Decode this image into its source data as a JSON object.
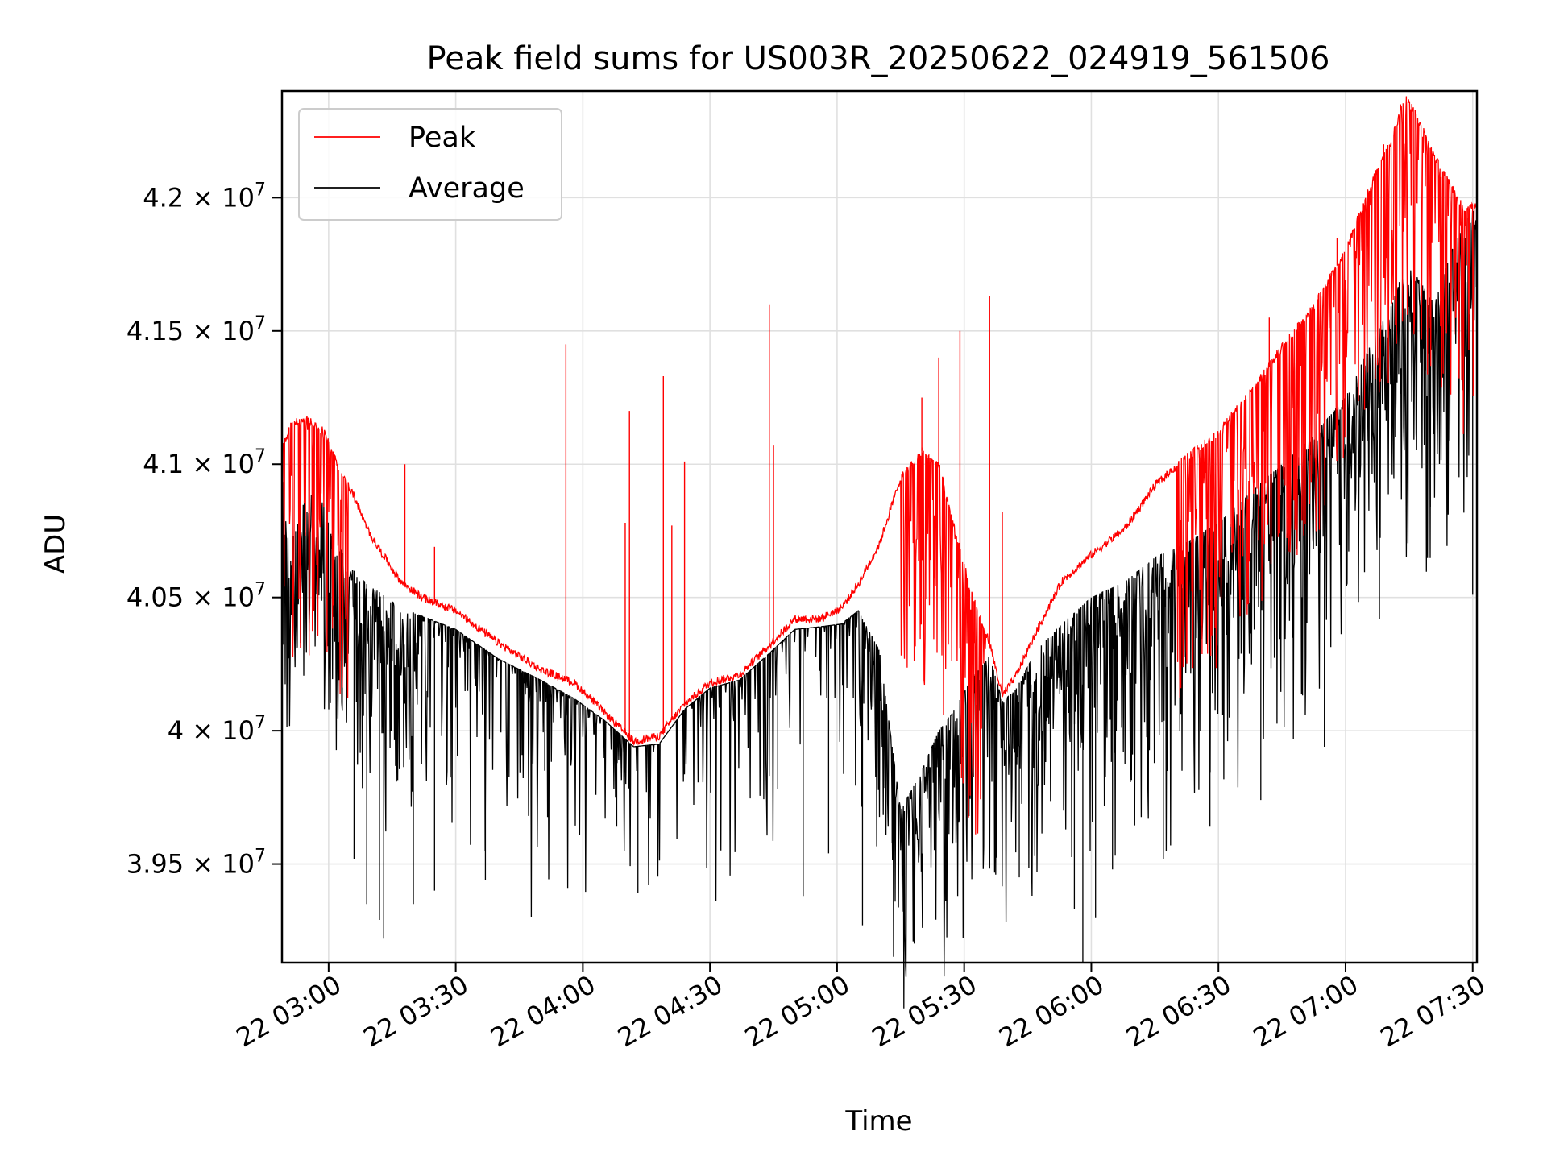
{
  "chart_data": {
    "type": "line",
    "title": "Peak field sums for US003R_20250622_024919_561506",
    "xlabel": "Time",
    "ylabel": "ADU",
    "x_axis_kind": "time",
    "xlim": [
      "2025-06-22 02:49",
      "2025-06-22 07:31"
    ],
    "ylim": [
      39130000,
      42400000
    ],
    "grid": true,
    "legend_position": "top-left",
    "x_ticks": [
      {
        "value": "2025-06-22 03:00",
        "label": "22 03:00"
      },
      {
        "value": "2025-06-22 03:30",
        "label": "22 03:30"
      },
      {
        "value": "2025-06-22 04:00",
        "label": "22 04:00"
      },
      {
        "value": "2025-06-22 04:30",
        "label": "22 04:30"
      },
      {
        "value": "2025-06-22 05:00",
        "label": "22 05:00"
      },
      {
        "value": "2025-06-22 05:30",
        "label": "22 05:30"
      },
      {
        "value": "2025-06-22 06:00",
        "label": "22 06:00"
      },
      {
        "value": "2025-06-22 06:30",
        "label": "22 06:30"
      },
      {
        "value": "2025-06-22 07:00",
        "label": "22 07:00"
      },
      {
        "value": "2025-06-22 07:30",
        "label": "22 07:30"
      }
    ],
    "y_ticks": [
      {
        "value": 39500000,
        "mantissa": "3.95",
        "exponent": "7"
      },
      {
        "value": 40000000,
        "mantissa": "4",
        "exponent": "7"
      },
      {
        "value": 40500000,
        "mantissa": "4.05",
        "exponent": "7"
      },
      {
        "value": 41000000,
        "mantissa": "4.1",
        "exponent": "7"
      },
      {
        "value": 41500000,
        "mantissa": "4.15",
        "exponent": "7"
      },
      {
        "value": 42000000,
        "mantissa": "4.2",
        "exponent": "7"
      }
    ],
    "series": [
      {
        "name": "Peak",
        "color": "#ff0000",
        "baseline": [
          [
            "2025-06-22 02:49",
            41050000
          ],
          [
            "2025-06-22 02:51",
            41150000
          ],
          [
            "2025-06-22 02:55",
            41170000
          ],
          [
            "2025-06-22 02:59",
            41120000
          ],
          [
            "2025-06-22 03:02",
            41000000
          ],
          [
            "2025-06-22 03:06",
            40880000
          ],
          [
            "2025-06-22 03:09",
            40760000
          ],
          [
            "2025-06-22 03:12",
            40680000
          ],
          [
            "2025-06-22 03:17",
            40560000
          ],
          [
            "2025-06-22 03:22",
            40500000
          ],
          [
            "2025-06-22 03:30",
            40450000
          ],
          [
            "2025-06-22 03:40",
            40330000
          ],
          [
            "2025-06-22 03:50",
            40230000
          ],
          [
            "2025-06-22 03:58",
            40180000
          ],
          [
            "2025-06-22 04:05",
            40070000
          ],
          [
            "2025-06-22 04:12",
            39960000
          ],
          [
            "2025-06-22 04:18",
            39980000
          ],
          [
            "2025-06-22 04:24",
            40100000
          ],
          [
            "2025-06-22 04:30",
            40180000
          ],
          [
            "2025-06-22 04:37",
            40210000
          ],
          [
            "2025-06-22 04:44",
            40320000
          ],
          [
            "2025-06-22 04:50",
            40420000
          ],
          [
            "2025-06-22 04:56",
            40420000
          ],
          [
            "2025-06-22 05:01",
            40460000
          ],
          [
            "2025-06-22 05:05",
            40550000
          ],
          [
            "2025-06-22 05:10",
            40700000
          ],
          [
            "2025-06-22 05:15",
            40950000
          ],
          [
            "2025-06-22 05:20",
            41050000
          ],
          [
            "2025-06-22 05:24",
            41000000
          ],
          [
            "2025-06-22 05:27",
            40800000
          ],
          [
            "2025-06-22 05:32",
            40500000
          ],
          [
            "2025-06-22 05:36",
            40330000
          ],
          [
            "2025-06-22 05:39",
            40130000
          ],
          [
            "2025-06-22 05:42",
            40200000
          ],
          [
            "2025-06-22 05:47",
            40370000
          ],
          [
            "2025-06-22 05:53",
            40560000
          ],
          [
            "2025-06-22 06:00",
            40660000
          ],
          [
            "2025-06-22 06:08",
            40760000
          ],
          [
            "2025-06-22 06:15",
            40920000
          ],
          [
            "2025-06-22 06:22",
            41020000
          ],
          [
            "2025-06-22 06:30",
            41120000
          ],
          [
            "2025-06-22 06:38",
            41280000
          ],
          [
            "2025-06-22 06:45",
            41440000
          ],
          [
            "2025-06-22 06:52",
            41580000
          ],
          [
            "2025-06-22 07:00",
            41800000
          ],
          [
            "2025-06-22 07:06",
            42050000
          ],
          [
            "2025-06-22 07:11",
            42220000
          ],
          [
            "2025-06-22 07:14",
            42380000
          ],
          [
            "2025-06-22 07:17",
            42300000
          ],
          [
            "2025-06-22 07:21",
            42150000
          ],
          [
            "2025-06-22 07:25",
            42050000
          ],
          [
            "2025-06-22 07:28",
            41950000
          ],
          [
            "2025-06-22 07:30",
            41970000
          ]
        ],
        "spikes": [
          [
            "2025-06-22 03:18",
            41000000
          ],
          [
            "2025-06-22 03:25",
            40690000
          ],
          [
            "2025-06-22 03:56",
            41450000
          ],
          [
            "2025-06-22 04:10",
            40780000
          ],
          [
            "2025-06-22 04:11",
            41200000
          ],
          [
            "2025-06-22 04:19",
            41330000
          ],
          [
            "2025-06-22 04:21",
            40770000
          ],
          [
            "2025-06-22 04:24",
            41010000
          ],
          [
            "2025-06-22 04:44",
            41600000
          ],
          [
            "2025-06-22 04:45",
            41070000
          ],
          [
            "2025-06-22 05:20",
            41250000
          ],
          [
            "2025-06-22 05:24",
            41400000
          ],
          [
            "2025-06-22 05:29",
            41500000
          ],
          [
            "2025-06-22 05:36",
            41630000
          ],
          [
            "2025-06-22 05:39",
            40820000
          ],
          [
            "2025-06-22 06:42",
            41550000
          ],
          [
            "2025-06-22 06:58",
            41850000
          ],
          [
            "2025-06-22 07:09",
            42200000
          ],
          [
            "2025-06-22 07:13",
            42350000
          ]
        ]
      },
      {
        "name": "Average",
        "color": "#000000",
        "baseline": [
          [
            "2025-06-22 02:49",
            40950000
          ],
          [
            "2025-06-22 02:51",
            40700000
          ],
          [
            "2025-06-22 02:55",
            40900000
          ],
          [
            "2025-06-22 02:59",
            40850000
          ],
          [
            "2025-06-22 03:02",
            40700000
          ],
          [
            "2025-06-22 03:06",
            40600000
          ],
          [
            "2025-06-22 03:09",
            40550000
          ],
          [
            "2025-06-22 03:12",
            40520000
          ],
          [
            "2025-06-22 03:17",
            40460000
          ],
          [
            "2025-06-22 03:22",
            40430000
          ],
          [
            "2025-06-22 03:30",
            40380000
          ],
          [
            "2025-06-22 03:40",
            40270000
          ],
          [
            "2025-06-22 03:50",
            40190000
          ],
          [
            "2025-06-22 03:58",
            40120000
          ],
          [
            "2025-06-22 04:05",
            40040000
          ],
          [
            "2025-06-22 04:12",
            39940000
          ],
          [
            "2025-06-22 04:18",
            39950000
          ],
          [
            "2025-06-22 04:24",
            40080000
          ],
          [
            "2025-06-22 04:30",
            40160000
          ],
          [
            "2025-06-22 04:37",
            40190000
          ],
          [
            "2025-06-22 04:44",
            40290000
          ],
          [
            "2025-06-22 04:50",
            40380000
          ],
          [
            "2025-06-22 04:56",
            40390000
          ],
          [
            "2025-06-22 05:01",
            40400000
          ],
          [
            "2025-06-22 05:05",
            40450000
          ],
          [
            "2025-06-22 05:10",
            40300000
          ],
          [
            "2025-06-22 05:15",
            39700000
          ],
          [
            "2025-06-22 05:20",
            39850000
          ],
          [
            "2025-06-22 05:24",
            40000000
          ],
          [
            "2025-06-22 05:27",
            40060000
          ],
          [
            "2025-06-22 05:32",
            40200000
          ],
          [
            "2025-06-22 05:36",
            40280000
          ],
          [
            "2025-06-22 05:39",
            40110000
          ],
          [
            "2025-06-22 05:42",
            40150000
          ],
          [
            "2025-06-22 05:47",
            40300000
          ],
          [
            "2025-06-22 05:53",
            40400000
          ],
          [
            "2025-06-22 06:00",
            40500000
          ],
          [
            "2025-06-22 06:08",
            40560000
          ],
          [
            "2025-06-22 06:15",
            40650000
          ],
          [
            "2025-06-22 06:22",
            40700000
          ],
          [
            "2025-06-22 06:30",
            40780000
          ],
          [
            "2025-06-22 06:38",
            40900000
          ],
          [
            "2025-06-22 06:45",
            41000000
          ],
          [
            "2025-06-22 06:52",
            41100000
          ],
          [
            "2025-06-22 07:00",
            41250000
          ],
          [
            "2025-06-22 07:06",
            41450000
          ],
          [
            "2025-06-22 07:11",
            41600000
          ],
          [
            "2025-06-22 07:14",
            41750000
          ],
          [
            "2025-06-22 07:17",
            41700000
          ],
          [
            "2025-06-22 07:21",
            41600000
          ],
          [
            "2025-06-22 07:25",
            41800000
          ],
          [
            "2025-06-22 07:28",
            41900000
          ],
          [
            "2025-06-22 07:30",
            41950000
          ]
        ],
        "dips": [
          [
            "2025-06-22 03:06",
            39520000
          ],
          [
            "2025-06-22 03:09",
            39350000
          ],
          [
            "2025-06-22 03:12",
            39290000
          ],
          [
            "2025-06-22 03:13",
            39220000
          ],
          [
            "2025-06-22 03:20",
            39350000
          ],
          [
            "2025-06-22 03:25",
            39400000
          ],
          [
            "2025-06-22 03:37",
            39440000
          ],
          [
            "2025-06-22 03:51",
            39850000
          ],
          [
            "2025-06-22 04:08",
            39640000
          ],
          [
            "2025-06-22 04:13",
            39390000
          ],
          [
            "2025-06-22 04:46",
            39780000
          ],
          [
            "2025-06-22 04:52",
            39380000
          ],
          [
            "2025-06-22 04:58",
            39540000
          ],
          [
            "2025-06-22 05:06",
            39270000
          ],
          [
            "2025-06-22 05:13",
            39580000
          ],
          [
            "2025-06-22 05:43",
            39450000
          ],
          [
            "2025-06-22 05:56",
            39330000
          ],
          [
            "2025-06-22 05:58",
            39130000
          ],
          [
            "2025-06-22 06:01",
            39300000
          ],
          [
            "2025-06-22 06:05",
            39480000
          ],
          [
            "2025-06-22 06:17",
            39520000
          ],
          [
            "2025-06-22 06:28",
            39640000
          ],
          [
            "2025-06-22 06:40",
            39740000
          ],
          [
            "2025-06-22 06:55",
            39940000
          ],
          [
            "2025-06-22 07:08",
            40420000
          ],
          [
            "2025-06-22 07:20",
            40840000
          ],
          [
            "2025-06-22 07:30",
            40510000
          ]
        ]
      }
    ]
  }
}
